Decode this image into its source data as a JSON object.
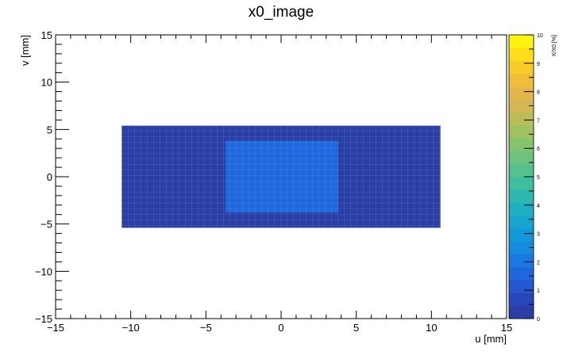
{
  "chart_data": {
    "type": "heatmap",
    "title": "x0_image",
    "xlabel": "u [mm]",
    "ylabel": "v [mm]",
    "xlim": [
      -15,
      15
    ],
    "ylim": [
      -15,
      15
    ],
    "x_ticks": [
      -15,
      -10,
      -5,
      0,
      5,
      10,
      15
    ],
    "x_tick_labels": [
      "−15",
      "−10",
      "−5",
      "0",
      "5",
      "10",
      "15"
    ],
    "y_ticks": [
      -15,
      -10,
      -5,
      0,
      5,
      10,
      15
    ],
    "y_tick_labels": [
      "−15",
      "−10",
      "−5",
      "0",
      "5",
      "10",
      "15"
    ],
    "colorbar": {
      "label": "X/X0 [%]",
      "range": [
        0,
        10
      ],
      "ticks": [
        0,
        1,
        2,
        3,
        4,
        5,
        6,
        7,
        8,
        9,
        10
      ],
      "tick_labels": [
        "0",
        "1",
        "2",
        "3",
        "4",
        "5",
        "6",
        "7",
        "8",
        "9",
        "10"
      ],
      "colors": [
        "#2b3ea6",
        "#2848ba",
        "#2557cf",
        "#1f67dd",
        "#1a78e3",
        "#158be0",
        "#1398d7",
        "#17a4cf",
        "#1fb0c1",
        "#2db7b0",
        "#3fbd9f",
        "#54c28e",
        "#6cc37d",
        "#84c46c",
        "#a0c25e",
        "#bbbd58",
        "#d2b752",
        "#e3b748",
        "#f0bf39",
        "#f9cb29",
        "#fedd1a",
        "#fff40d"
      ]
    },
    "grid": false,
    "regions": [
      {
        "u": [
          -10.6,
          10.6
        ],
        "v": [
          -5.4,
          5.4
        ],
        "value": 0.3
      },
      {
        "u": [
          -3.7,
          3.8
        ],
        "v": [
          -3.8,
          3.8
        ],
        "value": 1.4
      },
      {
        "u": [
          2.5,
          3.8
        ],
        "v": [
          -3.0,
          2.6
        ],
        "value": 1.6
      }
    ]
  }
}
